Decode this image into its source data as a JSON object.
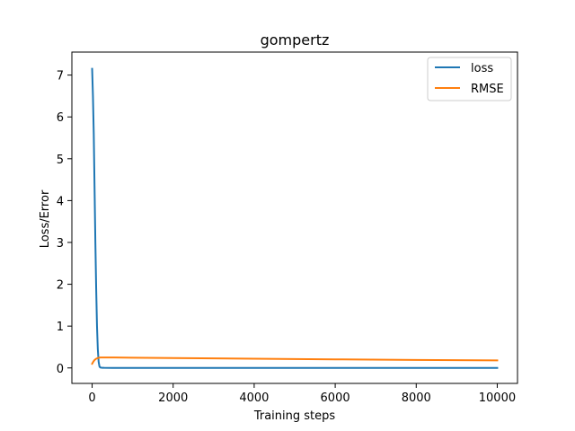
{
  "chart_data": {
    "type": "line",
    "title": "gompertz",
    "xlabel": "Training steps",
    "ylabel": "Loss/Error",
    "xlim": [
      -500,
      10500
    ],
    "ylim": [
      -0.37,
      7.55
    ],
    "xticks": [
      0,
      2000,
      4000,
      6000,
      8000,
      10000
    ],
    "xtick_labels": [
      "0",
      "2000",
      "4000",
      "6000",
      "8000",
      "10000"
    ],
    "yticks": [
      0,
      1,
      2,
      3,
      4,
      5,
      6,
      7
    ],
    "ytick_labels": [
      "0",
      "1",
      "2",
      "3",
      "4",
      "5",
      "6",
      "7"
    ],
    "grid": false,
    "legend_position": "top-right",
    "series": [
      {
        "name": "loss",
        "color": "#1f77b4",
        "x": [
          0,
          20,
          40,
          60,
          80,
          100,
          120,
          140,
          160,
          180,
          200,
          250,
          300,
          500,
          1000,
          2000,
          4000,
          6000,
          8000,
          10000
        ],
        "y": [
          7.15,
          6.5,
          5.6,
          4.3,
          3.0,
          1.9,
          1.0,
          0.45,
          0.15,
          0.04,
          0.01,
          0.004,
          0.002,
          0.001,
          0.001,
          0.001,
          0.001,
          0.001,
          0.001,
          0.001
        ]
      },
      {
        "name": "RMSE",
        "color": "#ff7f0e",
        "x": [
          0,
          30,
          60,
          100,
          150,
          200,
          300,
          500,
          1000,
          2000,
          4000,
          6000,
          8000,
          10000
        ],
        "y": [
          0.1,
          0.15,
          0.19,
          0.22,
          0.24,
          0.25,
          0.25,
          0.25,
          0.245,
          0.235,
          0.22,
          0.205,
          0.19,
          0.18
        ]
      }
    ]
  }
}
